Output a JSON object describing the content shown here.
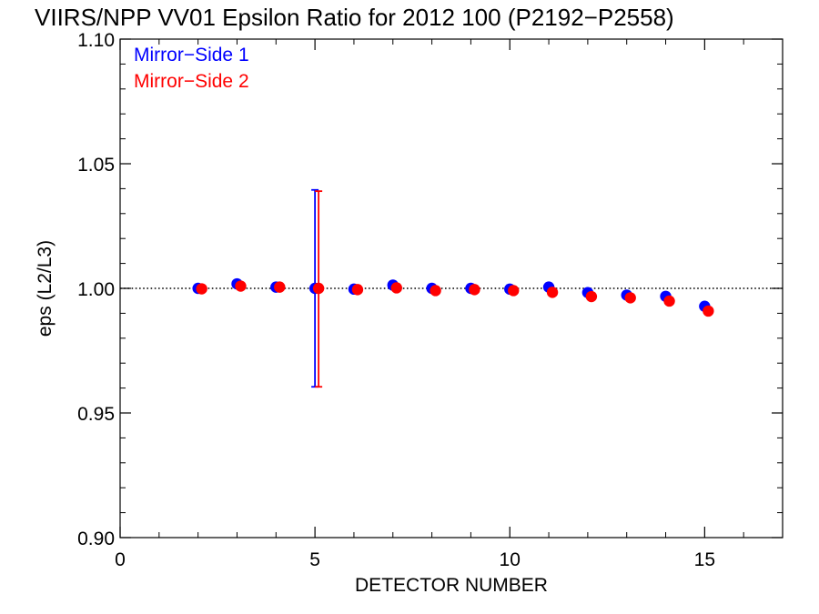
{
  "chart_data": {
    "type": "scatter",
    "title": "VIIRS/NPP VV01 Epsilon Ratio for 2012 100 (P2192−P2558)",
    "xlabel": "DETECTOR NUMBER",
    "ylabel": "eps (L2/L3)",
    "xlim": [
      0,
      17
    ],
    "ylim": [
      0.9,
      1.1
    ],
    "x_ticks": [
      {
        "value": 0,
        "label": "0"
      },
      {
        "value": 5,
        "label": "5"
      },
      {
        "value": 10,
        "label": "10"
      },
      {
        "value": 15,
        "label": "15"
      }
    ],
    "y_ticks": [
      {
        "value": 0.9,
        "label": "0.90"
      },
      {
        "value": 0.95,
        "label": "0.95"
      },
      {
        "value": 1.0,
        "label": "1.00"
      },
      {
        "value": 1.05,
        "label": "1.05"
      },
      {
        "value": 1.1,
        "label": "1.10"
      }
    ],
    "reference_line": {
      "y": 1.0,
      "style": "dotted"
    },
    "legend_position": "top-left",
    "series": [
      {
        "name": "Mirror−Side 1",
        "color": "#0000ff",
        "x": [
          2,
          3,
          4,
          5,
          6,
          7,
          8,
          9,
          10,
          11,
          12,
          13,
          14,
          15
        ],
        "values": [
          1.0,
          1.0018,
          1.0005,
          1.0,
          0.9997,
          1.0013,
          1.0,
          1.0,
          0.9997,
          1.0005,
          0.9983,
          0.9973,
          0.9968,
          0.9928
        ],
        "error_bar": {
          "x": 5,
          "low": 0.9605,
          "high": 1.0395
        }
      },
      {
        "name": "Mirror−Side 2",
        "color": "#ff0000",
        "x": [
          2,
          3,
          4,
          5,
          6,
          7,
          8,
          9,
          10,
          11,
          12,
          13,
          14,
          15
        ],
        "values": [
          0.9998,
          1.0009,
          1.0005,
          1.0,
          0.9995,
          1.0002,
          0.9991,
          0.9995,
          0.9991,
          0.9984,
          0.9967,
          0.9962,
          0.9949,
          0.9909
        ],
        "error_bar": {
          "x": 5,
          "low": 0.9605,
          "high": 1.039
        }
      }
    ]
  }
}
